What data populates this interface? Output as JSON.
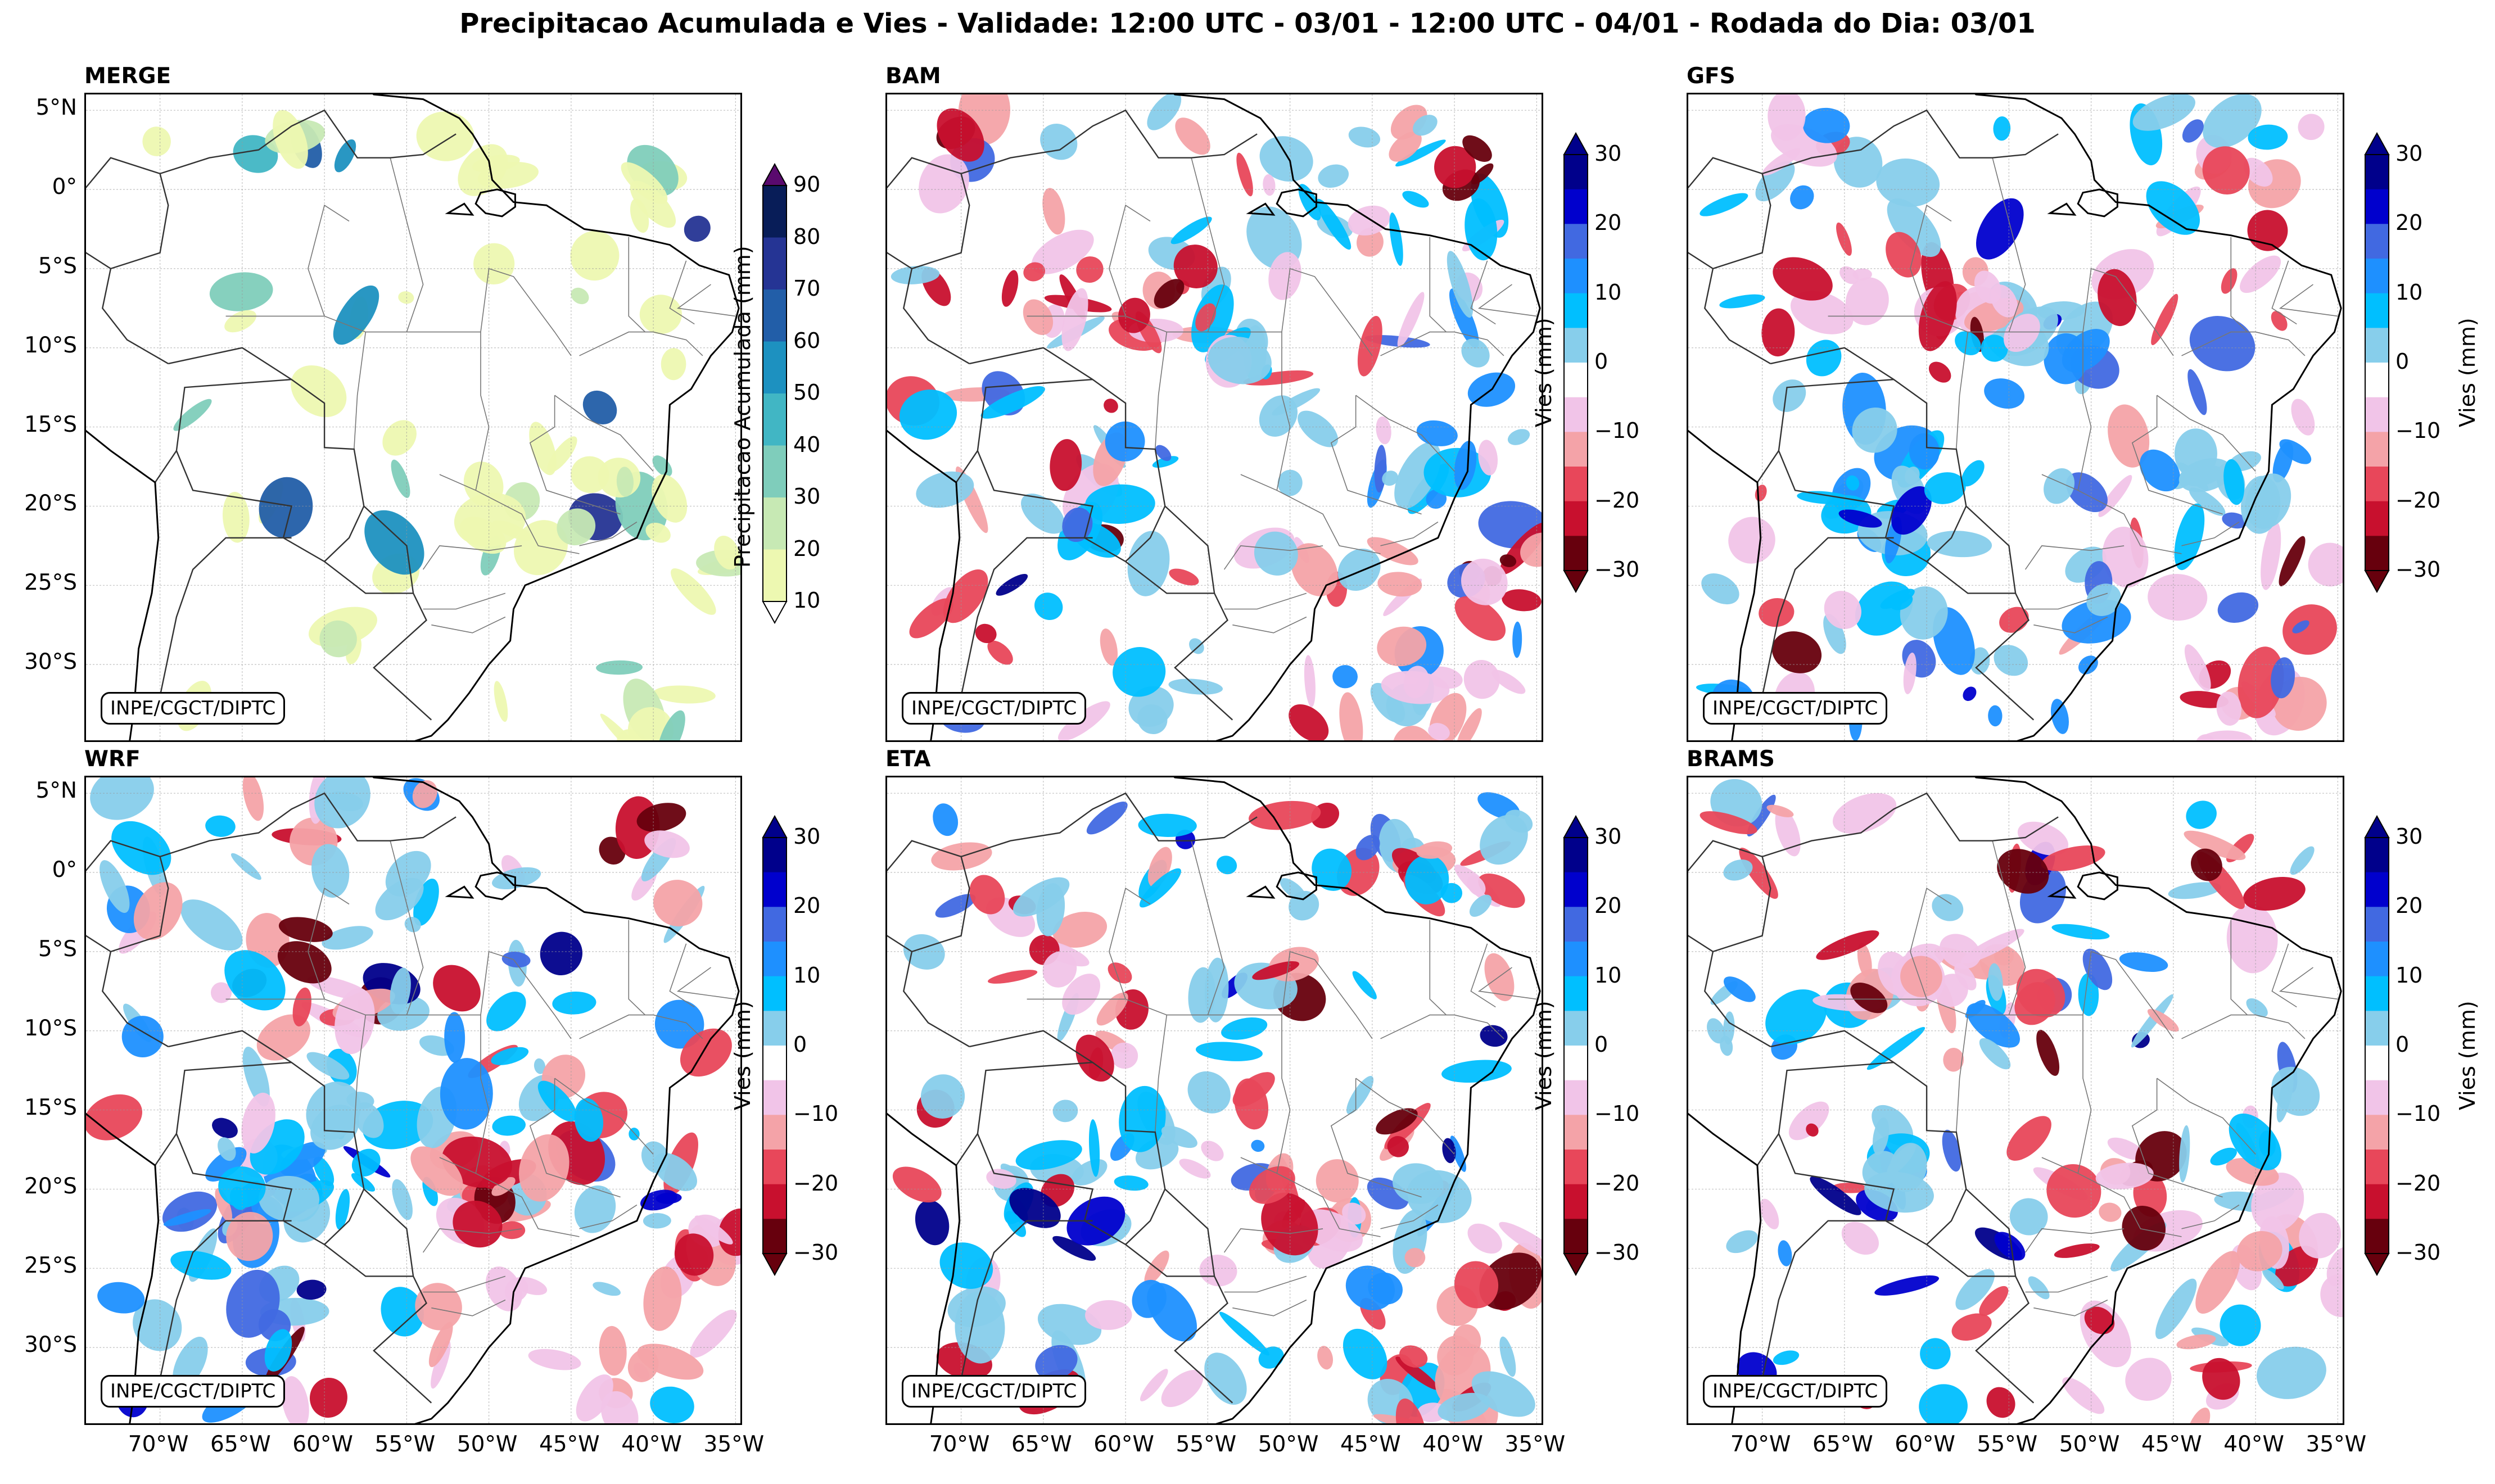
{
  "title": "Precipitacao Acumulada e Vies - Validade: 12:00 UTC - 03/01 - 12:00 UTC - 04/01 - Rodada do Dia: 03/01",
  "credit": "INPE/CGCT/DIPTC",
  "chart_data": [
    {
      "type": "heatmap",
      "title": "MERGE",
      "colorbar_label": "Precipitacao Acumulada (mm)",
      "colorbar_ticks": [
        "90",
        "80",
        "70",
        "60",
        "50",
        "40",
        "30",
        "20",
        "10"
      ],
      "levels": [
        10,
        20,
        30,
        40,
        50,
        60,
        70,
        80,
        90
      ],
      "colors": [
        "#edf8b1",
        "#c7e9b4",
        "#7fcdbb",
        "#41b6c4",
        "#1d91c0",
        "#225ea8",
        "#253494",
        "#081d58",
        "#5a0a6e"
      ],
      "lat_ticks": [
        "5°N",
        "0°",
        "5°S",
        "10°S",
        "15°S",
        "20°S",
        "25°S",
        "30°S"
      ],
      "lon_ticks": [
        "70°W",
        "65°W",
        "60°W",
        "55°W",
        "50°W",
        "45°W",
        "40°W",
        "35°W"
      ],
      "lon_range": [
        -74.5,
        -34.5
      ],
      "lat_range": [
        -35,
        6
      ]
    },
    {
      "type": "heatmap",
      "title": "BAM",
      "colorbar_label": "Vies (mm)",
      "colorbar_ticks": [
        "30",
        "20",
        "10",
        "0",
        "−10",
        "−20",
        "−30"
      ],
      "levels": [
        -30,
        -25,
        -20,
        -15,
        -10,
        -5,
        5,
        10,
        15,
        20,
        25,
        30
      ],
      "lon_range": [
        -74.5,
        -34.5
      ],
      "lat_range": [
        -35,
        6
      ]
    },
    {
      "type": "heatmap",
      "title": "GFS",
      "colorbar_label": "Vies (mm)",
      "colorbar_ticks": [
        "30",
        "20",
        "10",
        "0",
        "−10",
        "−20",
        "−30"
      ],
      "levels": [
        -30,
        -25,
        -20,
        -15,
        -10,
        -5,
        5,
        10,
        15,
        20,
        25,
        30
      ],
      "lon_range": [
        -74.5,
        -34.5
      ],
      "lat_range": [
        -35,
        6
      ]
    },
    {
      "type": "heatmap",
      "title": "WRF",
      "colorbar_label": "Vies (mm)",
      "colorbar_ticks": [
        "30",
        "20",
        "10",
        "0",
        "−10",
        "−20",
        "−30"
      ],
      "levels": [
        -30,
        -25,
        -20,
        -15,
        -10,
        -5,
        5,
        10,
        15,
        20,
        25,
        30
      ],
      "lon_range": [
        -74.5,
        -34.5
      ],
      "lat_range": [
        -35,
        6
      ]
    },
    {
      "type": "heatmap",
      "title": "ETA",
      "colorbar_label": "Vies (mm)",
      "colorbar_ticks": [
        "30",
        "20",
        "10",
        "0",
        "−10",
        "−20",
        "−30"
      ],
      "levels": [
        -30,
        -25,
        -20,
        -15,
        -10,
        -5,
        5,
        10,
        15,
        20,
        25,
        30
      ],
      "lon_range": [
        -74.5,
        -34.5
      ],
      "lat_range": [
        -35,
        6
      ]
    },
    {
      "type": "heatmap",
      "title": "BRAMS",
      "colorbar_label": "Vies (mm)",
      "colorbar_ticks": [
        "30",
        "20",
        "10",
        "0",
        "−10",
        "−20",
        "−30"
      ],
      "levels": [
        -30,
        -25,
        -20,
        -15,
        -10,
        -5,
        5,
        10,
        15,
        20,
        25,
        30
      ],
      "lon_range": [
        -74.5,
        -34.5
      ],
      "lat_range": [
        -35,
        6
      ]
    }
  ],
  "lat_ticks": [
    "5°N",
    "0°",
    "5°S",
    "10°S",
    "15°S",
    "20°S",
    "25°S",
    "30°S"
  ],
  "lon_ticks": [
    "70°W",
    "65°W",
    "60°W",
    "55°W",
    "50°W",
    "45°W",
    "40°W",
    "35°W"
  ],
  "bias_colors": [
    "#67000d",
    "#c8102e",
    "#e8475a",
    "#f4a3a8",
    "#f1c4e8",
    "#ffffff",
    "#87ceeb",
    "#00bfff",
    "#1e90ff",
    "#4169e1",
    "#0000cd",
    "#00008b"
  ]
}
